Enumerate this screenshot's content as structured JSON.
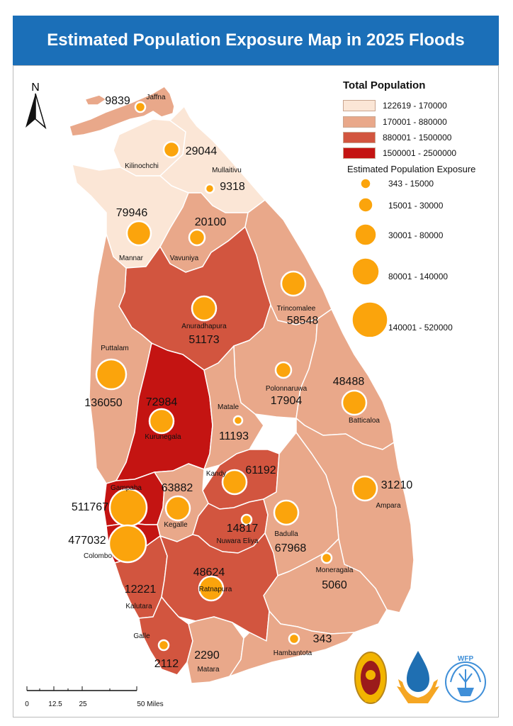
{
  "title": "Estimated Population Exposure Map in 2025 Floods",
  "north_arrow": "N",
  "legend": {
    "population_title": "Total Population",
    "population_classes": [
      {
        "label": "122619 - 170000",
        "color": "#fbe6d6"
      },
      {
        "label": "170001 - 880000",
        "color": "#e9a88a"
      },
      {
        "label": "880001 - 1500000",
        "color": "#d2553f"
      },
      {
        "label": "1500001 - 2500000",
        "color": "#c41412"
      }
    ],
    "exposure_title": "Estimated Population Exposure",
    "exposure_classes": [
      {
        "label": "343 - 15000"
      },
      {
        "label": "15001 - 30000"
      },
      {
        "label": "30001 - 80000"
      },
      {
        "label": "80001 - 140000"
      },
      {
        "label": "140001 - 520000"
      }
    ],
    "circle_color": "#fba40c"
  },
  "districts": [
    {
      "name": "Jaffna",
      "exposure": "9839",
      "class": 1
    },
    {
      "name": "Kilinochchi",
      "exposure": "29044",
      "class": 0
    },
    {
      "name": "Mullaitivu",
      "exposure": "9318",
      "class": 0
    },
    {
      "name": "Mannar",
      "exposure": "79946",
      "class": 0
    },
    {
      "name": "Vavuniya",
      "exposure": "20100",
      "class": 1
    },
    {
      "name": "Trincomalee",
      "exposure": "58548",
      "class": 1
    },
    {
      "name": "Anuradhapura",
      "exposure": "51173",
      "class": 2
    },
    {
      "name": "Puttalam",
      "exposure": "136050",
      "class": 1
    },
    {
      "name": "Polonnaruwa",
      "exposure": "17904",
      "class": 1
    },
    {
      "name": "Batticaloa",
      "exposure": "48488",
      "class": 1
    },
    {
      "name": "Kurunegala",
      "exposure": "72984",
      "class": 3
    },
    {
      "name": "Matale",
      "exposure": "11193",
      "class": 1
    },
    {
      "name": "Kandy",
      "exposure": "61192",
      "class": 2
    },
    {
      "name": "Ampara",
      "exposure": "31210",
      "class": 1
    },
    {
      "name": "Gampaha",
      "exposure": "511767",
      "class": 3
    },
    {
      "name": "Kegalle",
      "exposure": "63882",
      "class": 1
    },
    {
      "name": "Nuwara Eliya",
      "exposure": "14817",
      "class": 2
    },
    {
      "name": "Badulla",
      "exposure": "67968",
      "class": 1
    },
    {
      "name": "Colombo",
      "exposure": "477032",
      "class": 3
    },
    {
      "name": "Moneragala",
      "exposure": "5060",
      "class": 1
    },
    {
      "name": "Kalutara",
      "exposure": "12221",
      "class": 2
    },
    {
      "name": "Ratnapura",
      "exposure": "48624",
      "class": 2
    },
    {
      "name": "Galle",
      "exposure": "2112",
      "class": 2
    },
    {
      "name": "Matara",
      "exposure": "2290",
      "class": 1
    },
    {
      "name": "Hambantota",
      "exposure": "343",
      "class": 1
    }
  ],
  "scale_bar": {
    "ticks": [
      "0",
      "12.5",
      "25",
      "50 Miles"
    ]
  },
  "logos": [
    "government-emblem",
    "disaster-management-logo",
    "wfp-logo"
  ],
  "logo_text": {
    "wfp": "WFP"
  }
}
